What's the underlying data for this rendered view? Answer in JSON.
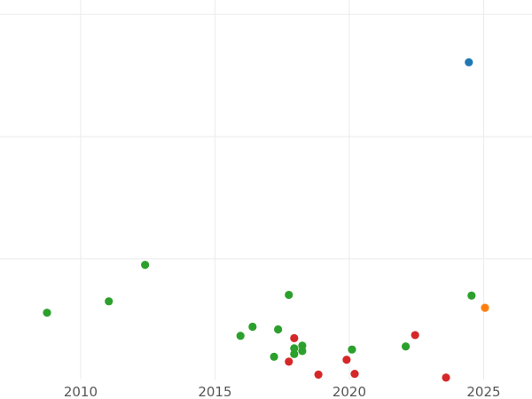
{
  "chart_data": {
    "type": "scatter",
    "title": "",
    "xlabel": "",
    "ylabel": "",
    "xlim": [
      2007.0,
      2026.8
    ],
    "ylim": [
      0.0,
      1.0
    ],
    "grid": true,
    "x_ticks": [
      2010,
      2015,
      2020,
      2025
    ],
    "x_tick_labels": [
      "2010",
      "2015",
      "2020",
      "2025"
    ],
    "y_gridlines": [
      0.318,
      0.64,
      0.962
    ],
    "series": [
      {
        "color": "#2ca02c",
        "points": [
          {
            "x": 2008.75,
            "y": 0.176
          },
          {
            "x": 2011.05,
            "y": 0.206
          },
          {
            "x": 2012.4,
            "y": 0.302
          },
          {
            "x": 2015.95,
            "y": 0.115
          },
          {
            "x": 2016.4,
            "y": 0.139
          },
          {
            "x": 2017.2,
            "y": 0.06
          },
          {
            "x": 2017.35,
            "y": 0.132
          },
          {
            "x": 2017.75,
            "y": 0.223
          },
          {
            "x": 2017.95,
            "y": 0.082
          },
          {
            "x": 2017.95,
            "y": 0.067
          },
          {
            "x": 2018.25,
            "y": 0.089
          },
          {
            "x": 2018.25,
            "y": 0.075
          },
          {
            "x": 2020.1,
            "y": 0.079
          },
          {
            "x": 2022.1,
            "y": 0.087
          },
          {
            "x": 2024.55,
            "y": 0.221
          }
        ]
      },
      {
        "color": "#d62728",
        "points": [
          {
            "x": 2017.95,
            "y": 0.109
          },
          {
            "x": 2017.75,
            "y": 0.047
          },
          {
            "x": 2018.85,
            "y": 0.013
          },
          {
            "x": 2019.9,
            "y": 0.052
          },
          {
            "x": 2020.2,
            "y": 0.015
          },
          {
            "x": 2022.45,
            "y": 0.117
          },
          {
            "x": 2023.6,
            "y": 0.005
          }
        ]
      },
      {
        "color": "#1f77b4",
        "points": [
          {
            "x": 2024.45,
            "y": 0.836
          }
        ]
      },
      {
        "color": "#ff7f0e",
        "points": [
          {
            "x": 2025.05,
            "y": 0.189
          }
        ]
      }
    ]
  }
}
